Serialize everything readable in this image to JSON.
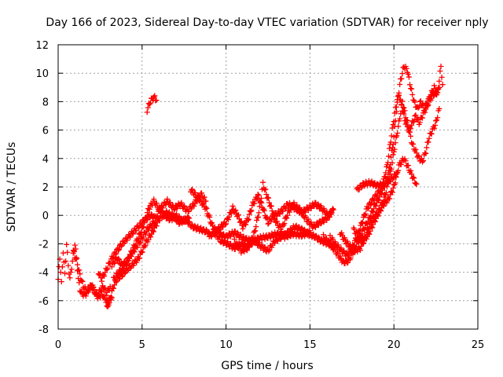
{
  "chart_data": {
    "type": "scatter",
    "title": "Day 166 of 2023, Sidereal Day-to-day VTEC variation (SDTVAR) for receiver nply",
    "xlabel": "GPS time / hours",
    "ylabel": "SDTVAR / TECUs",
    "xlim": [
      0,
      25
    ],
    "ylim": [
      -8,
      12
    ],
    "xticks": [
      0,
      5,
      10,
      15,
      20,
      25
    ],
    "yticks": [
      -8,
      -6,
      -4,
      -2,
      0,
      2,
      4,
      6,
      8,
      10,
      12
    ],
    "grid": true,
    "marker": "+",
    "series": [
      {
        "name": "SDTVAR",
        "color": "#ff0000",
        "tracks": [
          [
            [
              0.0,
              -4.5
            ],
            [
              0.1,
              -3.0
            ],
            [
              0.2,
              -4.8
            ],
            [
              0.3,
              -2.5
            ],
            [
              0.4,
              -4.2
            ],
            [
              0.5,
              -2.0
            ],
            [
              0.6,
              -3.5
            ],
            [
              0.7,
              -4.5
            ],
            [
              0.9,
              -2.8
            ],
            [
              1.0,
              -2.0
            ],
            [
              1.1,
              -3.0
            ],
            [
              1.2,
              -4.5
            ],
            [
              1.3,
              -5.2
            ],
            [
              1.4,
              -5.5
            ],
            [
              1.6,
              -5.6
            ],
            [
              1.8,
              -5.3
            ],
            [
              2.0,
              -4.8
            ],
            [
              2.2,
              -5.5
            ],
            [
              2.4,
              -5.8
            ],
            [
              2.6,
              -5.5
            ],
            [
              2.8,
              -5.9
            ],
            [
              3.0,
              -6.2
            ],
            [
              3.2,
              -5.8
            ]
          ],
          [
            [
              0.9,
              -2.5
            ],
            [
              1.1,
              -3.2
            ],
            [
              1.3,
              -4.2
            ],
            [
              1.5,
              -5.0
            ],
            [
              1.7,
              -5.3
            ],
            [
              1.9,
              -5.0
            ],
            [
              2.1,
              -5.2
            ],
            [
              2.3,
              -5.6
            ],
            [
              2.5,
              -5.3
            ],
            [
              2.7,
              -5.0
            ],
            [
              2.9,
              -5.5
            ],
            [
              3.1,
              -5.0
            ]
          ],
          [
            [
              2.4,
              -4.0
            ],
            [
              2.6,
              -4.5
            ],
            [
              2.8,
              -4.0
            ],
            [
              3.0,
              -3.5
            ],
            [
              3.2,
              -3.0
            ],
            [
              3.5,
              -2.5
            ],
            [
              3.8,
              -2.0
            ],
            [
              4.2,
              -1.5
            ],
            [
              4.6,
              -1.0
            ],
            [
              5.0,
              -0.5
            ],
            [
              5.5,
              0.0
            ],
            [
              5.8,
              -0.2
            ]
          ],
          [
            [
              2.9,
              -6.5
            ],
            [
              3.1,
              -5.8
            ],
            [
              3.3,
              -5.0
            ],
            [
              3.5,
              -4.5
            ],
            [
              3.8,
              -4.2
            ],
            [
              4.1,
              -3.8
            ],
            [
              4.4,
              -3.5
            ],
            [
              4.8,
              -3.0
            ],
            [
              5.2,
              -2.0
            ],
            [
              5.6,
              -1.2
            ],
            [
              6.0,
              -0.3
            ],
            [
              6.4,
              0.2
            ],
            [
              6.8,
              0.0
            ],
            [
              7.2,
              -0.5
            ],
            [
              7.6,
              -0.3
            ],
            [
              8.0,
              -0.8
            ],
            [
              8.5,
              -1.0
            ],
            [
              9.0,
              -1.2
            ]
          ],
          [
            [
              3.2,
              -3.5
            ],
            [
              3.5,
              -3.0
            ],
            [
              3.8,
              -3.5
            ],
            [
              4.1,
              -3.2
            ],
            [
              4.5,
              -2.5
            ],
            [
              4.9,
              -1.8
            ],
            [
              5.3,
              -1.0
            ],
            [
              5.7,
              -0.5
            ],
            [
              6.1,
              0.5
            ],
            [
              6.5,
              1.0
            ],
            [
              6.9,
              0.5
            ],
            [
              7.3,
              0.8
            ],
            [
              7.7,
              0.3
            ],
            [
              8.1,
              0.8
            ],
            [
              8.5,
              1.5
            ],
            [
              8.8,
              1.0
            ]
          ],
          [
            [
              3.3,
              -4.5
            ],
            [
              3.6,
              -4.0
            ],
            [
              3.9,
              -3.8
            ],
            [
              4.2,
              -3.0
            ],
            [
              4.6,
              -2.0
            ],
            [
              5.0,
              -1.0
            ],
            [
              5.4,
              0.5
            ],
            [
              5.7,
              1.0
            ],
            [
              6.0,
              0.5
            ],
            [
              6.3,
              0.0
            ],
            [
              6.7,
              -0.3
            ],
            [
              7.0,
              0.0
            ],
            [
              7.4,
              -0.4
            ],
            [
              7.8,
              -0.2
            ]
          ],
          [
            [
              5.3,
              7.4
            ],
            [
              5.45,
              7.9
            ],
            [
              5.6,
              8.2
            ],
            [
              5.75,
              8.3
            ],
            [
              5.85,
              8.1
            ]
          ],
          [
            [
              7.9,
              1.8
            ],
            [
              8.3,
              1.3
            ],
            [
              8.8,
              0.5
            ],
            [
              9.2,
              -0.8
            ],
            [
              9.6,
              -1.3
            ],
            [
              10.0,
              -1.5
            ],
            [
              10.5,
              -1.2
            ],
            [
              11.0,
              -1.6
            ],
            [
              11.5,
              -1.8
            ],
            [
              12.0,
              -1.6
            ],
            [
              12.5,
              -1.5
            ],
            [
              13.0,
              -1.3
            ],
            [
              13.5,
              -1.5
            ],
            [
              14.0,
              -1.3
            ],
            [
              14.5,
              -1.4
            ],
            [
              15.0,
              -1.2
            ]
          ],
          [
            [
              9.0,
              -1.5
            ],
            [
              9.5,
              -1.0
            ],
            [
              10.0,
              -0.5
            ],
            [
              10.4,
              0.5
            ],
            [
              10.7,
              0.0
            ],
            [
              11.0,
              -0.8
            ],
            [
              11.3,
              -0.3
            ],
            [
              11.6,
              0.8
            ],
            [
              11.9,
              1.4
            ],
            [
              12.2,
              0.5
            ],
            [
              12.5,
              -0.5
            ],
            [
              12.9,
              0.0
            ],
            [
              13.3,
              0.3
            ],
            [
              13.7,
              0.8
            ],
            [
              14.1,
              0.5
            ],
            [
              14.5,
              0.2
            ],
            [
              14.9,
              0.5
            ],
            [
              15.3,
              0.8
            ],
            [
              15.7,
              0.5
            ],
            [
              16.1,
              0.0
            ],
            [
              16.4,
              0.4
            ]
          ],
          [
            [
              9.3,
              -1.2
            ],
            [
              9.7,
              -1.8
            ],
            [
              10.1,
              -2.0
            ],
            [
              10.5,
              -2.3
            ],
            [
              10.9,
              -2.0
            ],
            [
              11.3,
              -2.2
            ],
            [
              11.7,
              -1.8
            ],
            [
              12.1,
              -2.2
            ],
            [
              12.5,
              -2.5
            ],
            [
              12.9,
              -1.8
            ],
            [
              13.3,
              -1.5
            ],
            [
              13.7,
              -1.2
            ],
            [
              14.1,
              -0.8
            ],
            [
              14.5,
              -1.0
            ],
            [
              14.9,
              -1.3
            ],
            [
              15.3,
              -1.5
            ],
            [
              15.7,
              -1.8
            ],
            [
              16.1,
              -2.0
            ],
            [
              16.5,
              -2.2
            ]
          ],
          [
            [
              10.5,
              -1.8
            ],
            [
              10.9,
              -2.5
            ],
            [
              11.3,
              -2.3
            ],
            [
              11.7,
              -1.2
            ],
            [
              12.0,
              0.5
            ],
            [
              12.2,
              2.2
            ],
            [
              12.4,
              1.5
            ],
            [
              12.7,
              0.5
            ],
            [
              13.0,
              -0.5
            ],
            [
              13.3,
              -1.0
            ],
            [
              13.7,
              0.2
            ],
            [
              14.0,
              0.8
            ],
            [
              14.4,
              0.4
            ],
            [
              14.8,
              -0.3
            ],
            [
              15.2,
              -0.8
            ],
            [
              15.6,
              -0.5
            ],
            [
              16.0,
              -0.2
            ],
            [
              16.3,
              0.2
            ]
          ],
          [
            [
              15.8,
              -1.5
            ],
            [
              16.2,
              -2.0
            ],
            [
              16.5,
              -2.5
            ],
            [
              16.8,
              -3.0
            ],
            [
              17.0,
              -3.3
            ],
            [
              17.3,
              -3.2
            ],
            [
              17.6,
              -2.5
            ],
            [
              17.9,
              -1.8
            ],
            [
              18.2,
              -1.0
            ],
            [
              18.5,
              -0.3
            ],
            [
              18.8,
              0.5
            ],
            [
              19.1,
              1.2
            ],
            [
              19.4,
              2.0
            ],
            [
              19.7,
              3.0
            ],
            [
              20.0,
              5.5
            ],
            [
              20.2,
              8.0
            ],
            [
              20.4,
              9.5
            ],
            [
              20.6,
              10.5
            ],
            [
              20.8,
              10.2
            ],
            [
              21.0,
              9.0
            ],
            [
              21.2,
              8.0
            ],
            [
              21.4,
              7.5
            ],
            [
              21.6,
              8.0
            ],
            [
              21.8,
              7.5
            ],
            [
              22.0,
              8.0
            ],
            [
              22.2,
              8.5
            ],
            [
              22.4,
              9.0
            ],
            [
              22.6,
              8.5
            ],
            [
              22.8,
              10.5
            ],
            [
              22.9,
              9.2
            ]
          ],
          [
            [
              16.2,
              -1.5
            ],
            [
              16.5,
              -2.0
            ],
            [
              16.9,
              -2.5
            ],
            [
              17.2,
              -2.8
            ],
            [
              17.5,
              -2.3
            ],
            [
              17.8,
              -1.5
            ],
            [
              18.1,
              -0.5
            ],
            [
              18.4,
              0.5
            ],
            [
              18.7,
              1.0
            ],
            [
              19.0,
              1.5
            ],
            [
              19.3,
              2.0
            ],
            [
              19.6,
              3.5
            ],
            [
              19.9,
              6.0
            ],
            [
              20.1,
              7.5
            ],
            [
              20.3,
              8.5
            ],
            [
              20.5,
              7.5
            ],
            [
              20.7,
              6.5
            ],
            [
              20.9,
              6.0
            ],
            [
              21.1,
              6.5
            ],
            [
              21.3,
              7.0
            ],
            [
              21.5,
              6.5
            ],
            [
              21.7,
              7.0
            ],
            [
              21.9,
              7.5
            ],
            [
              22.1,
              8.0
            ],
            [
              22.3,
              8.5
            ],
            [
              22.5,
              8.5
            ],
            [
              22.7,
              9.0
            ]
          ],
          [
            [
              16.8,
              -1.2
            ],
            [
              17.1,
              -1.8
            ],
            [
              17.4,
              -2.2
            ],
            [
              17.7,
              -2.5
            ],
            [
              18.0,
              -2.3
            ],
            [
              18.3,
              -1.5
            ],
            [
              18.6,
              -0.5
            ],
            [
              18.9,
              0.0
            ],
            [
              19.2,
              0.5
            ],
            [
              19.5,
              1.5
            ],
            [
              19.8,
              3.0
            ],
            [
              20.0,
              4.5
            ],
            [
              20.3,
              6.5
            ],
            [
              20.5,
              8.0
            ],
            [
              20.7,
              7.0
            ],
            [
              20.9,
              6.0
            ],
            [
              21.1,
              5.0
            ],
            [
              21.3,
              4.5
            ],
            [
              21.5,
              4.0
            ],
            [
              21.7,
              3.8
            ],
            [
              21.9,
              4.5
            ],
            [
              22.1,
              5.5
            ],
            [
              22.3,
              6.0
            ],
            [
              22.5,
              6.5
            ],
            [
              22.7,
              7.5
            ]
          ],
          [
            [
              17.6,
              -1.0
            ],
            [
              17.9,
              -1.5
            ],
            [
              18.2,
              -1.8
            ],
            [
              18.5,
              -1.3
            ],
            [
              18.8,
              -0.5
            ],
            [
              19.1,
              0.2
            ],
            [
              19.4,
              0.8
            ],
            [
              19.7,
              1.2
            ],
            [
              20.0,
              2.0
            ],
            [
              20.3,
              3.5
            ],
            [
              20.6,
              4.0
            ],
            [
              20.8,
              3.5
            ],
            [
              21.0,
              3.0
            ],
            [
              21.2,
              2.5
            ],
            [
              21.35,
              2.2
            ]
          ],
          [
            [
              17.8,
              1.8
            ],
            [
              18.2,
              2.2
            ],
            [
              18.6,
              2.3
            ],
            [
              19.0,
              2.1
            ],
            [
              19.4,
              2.2
            ],
            [
              19.8,
              2.5
            ],
            [
              20.2,
              3.0
            ]
          ]
        ]
      }
    ]
  }
}
